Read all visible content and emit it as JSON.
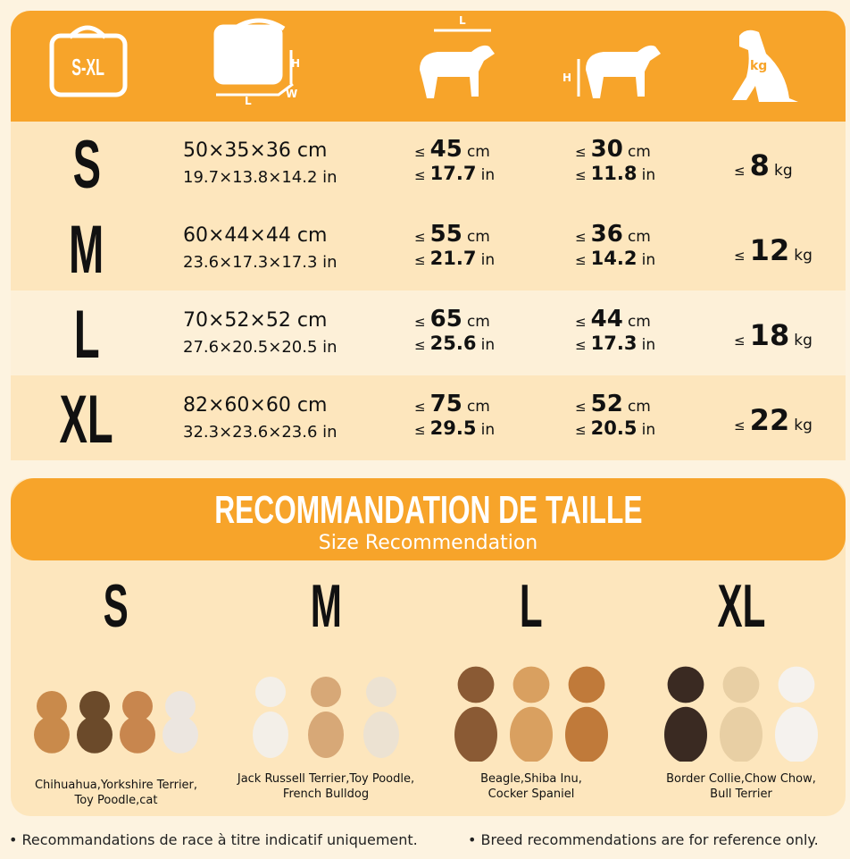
{
  "header": {
    "bag_label": "S-XL",
    "bag_dims_labels": [
      "H",
      "L",
      "W"
    ],
    "length_label": "L",
    "height_label": "H",
    "weight_label": "kg"
  },
  "units": {
    "le": "≤",
    "cm": "cm",
    "in": "in",
    "kg": "kg"
  },
  "table": {
    "rows": [
      {
        "size": "S",
        "dims_cm": "50×35×36 cm",
        "dims_in": "19.7×13.8×14.2 in",
        "length": {
          "cm": 45,
          "in": 17.7
        },
        "height": {
          "cm": 30,
          "in": 11.8
        },
        "weight": 8
      },
      {
        "size": "M",
        "dims_cm": "60×44×44 cm",
        "dims_in": "23.6×17.3×17.3 in",
        "length": {
          "cm": 55,
          "in": 21.7
        },
        "height": {
          "cm": 36,
          "in": 14.2
        },
        "weight": 12
      },
      {
        "size": "L",
        "dims_cm": "70×52×52 cm",
        "dims_in": "27.6×20.5×20.5 in",
        "length": {
          "cm": 65,
          "in": 25.6
        },
        "height": {
          "cm": 44,
          "in": 17.3
        },
        "weight": 18
      },
      {
        "size": "XL",
        "dims_cm": "82×60×60 cm",
        "dims_in": "32.3×23.6×23.6 in",
        "length": {
          "cm": 75,
          "in": 29.5
        },
        "height": {
          "cm": 52,
          "in": 20.5
        },
        "weight": 22
      }
    ]
  },
  "recommendation": {
    "title": "RECOMMANDATION DE TAILLE",
    "subtitle": "Size Recommendation",
    "groups": [
      {
        "size": "S",
        "breeds": [
          "Chihuahua,Yorkshire Terrier,",
          "Toy Poodle,cat"
        ]
      },
      {
        "size": "M",
        "breeds": [
          "Jack Russell Terrier,Toy Poodle,",
          "French Bulldog"
        ]
      },
      {
        "size": "L",
        "breeds": [
          "Beagle,Shiba Inu,",
          "Cocker Spaniel"
        ]
      },
      {
        "size": "XL",
        "breeds": [
          "Border Collie,Chow Chow,",
          "Bull Terrier"
        ]
      }
    ]
  },
  "footnotes": [
    "• Recommandations de race à titre indicatif uniquement.",
    "• Breed recommendations are for reference only."
  ]
}
